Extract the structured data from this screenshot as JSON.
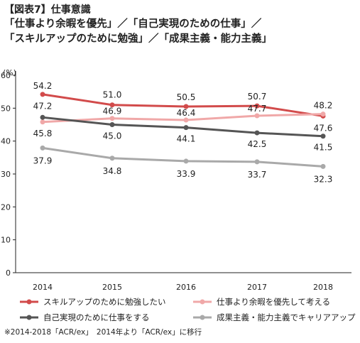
{
  "figure_label": "【図表7】仕事意識",
  "title_lines": [
    "「仕事より余暇を優先」／「自己実現のための仕事」／",
    "「スキルアップのために勉強」／「成果主義・能力主義」"
  ],
  "note": "※2014-2018「ACR/ex」　2014年より「ACR/ex」に移行",
  "chart_data": {
    "type": "line",
    "x": [
      "2014",
      "2015",
      "2016",
      "2017",
      "2018"
    ],
    "ylabel": "(%)",
    "ylim": [
      0,
      60
    ],
    "yticks": [
      0,
      10,
      20,
      30,
      40,
      50,
      60
    ],
    "grid": false,
    "legend_position": "bottom",
    "series": [
      {
        "name": "スキルアップのために勉強したい",
        "color": "#d24b4b",
        "values": [
          54.2,
          51.0,
          50.5,
          50.7,
          47.6
        ]
      },
      {
        "name": "仕事より余暇を優先して考える",
        "color": "#f0a8a8",
        "values": [
          45.8,
          46.9,
          46.4,
          47.7,
          48.2
        ]
      },
      {
        "name": "自己実現のために仕事をする",
        "color": "#555555",
        "values": [
          47.2,
          45.0,
          44.1,
          42.5,
          41.5
        ]
      },
      {
        "name": "成果主義・能力主義でキャリアアップ",
        "color": "#a9a9a9",
        "values": [
          37.9,
          34.8,
          33.9,
          33.7,
          32.3
        ]
      }
    ]
  }
}
